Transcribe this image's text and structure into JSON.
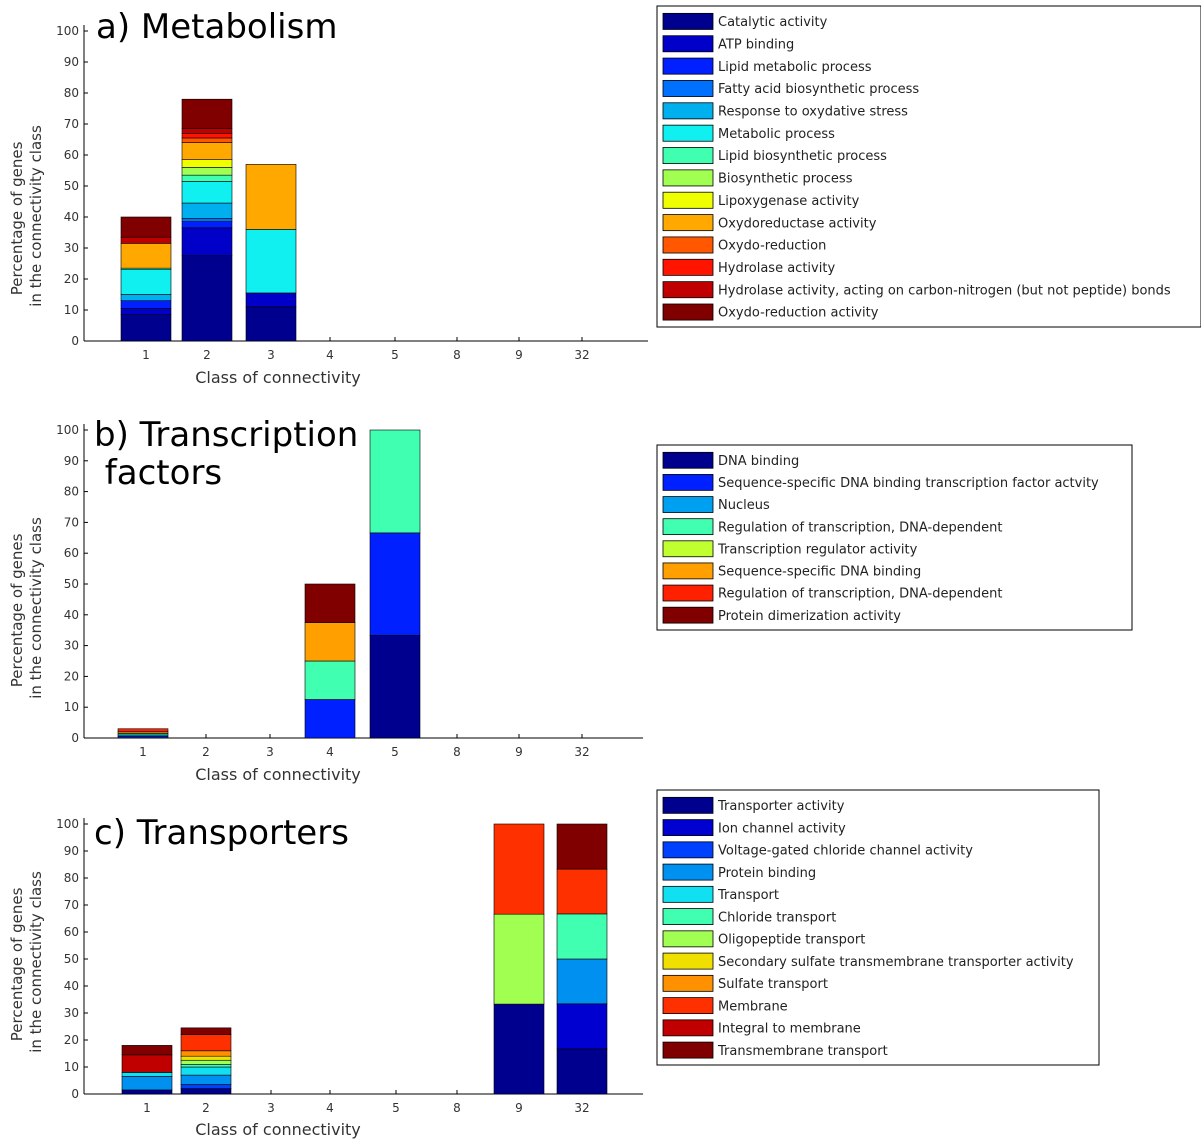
{
  "chart_data": [
    {
      "type": "bar",
      "stacked": true,
      "title": "a) Metabolism",
      "xlabel": "Class of connectivity",
      "ylabel": "Percentage of genes in the connectivity class",
      "ylabel_lines": [
        "Percentage of genes",
        "in the connectivity class"
      ],
      "categories": [
        "1",
        "2",
        "3",
        "4",
        "5",
        "8",
        "9",
        "32"
      ],
      "yticks": [
        0,
        10,
        20,
        30,
        40,
        50,
        60,
        70,
        80,
        90,
        100
      ],
      "ylim": [
        0,
        100
      ],
      "legend_position": "right",
      "series": [
        {
          "name": "Catalytic activity",
          "color": "#00008f",
          "values": [
            8.5,
            27.5,
            11,
            0,
            0,
            0,
            0,
            0
          ]
        },
        {
          "name": "ATP binding",
          "color": "#0000c8",
          "values": [
            2,
            9,
            4.5,
            0,
            0,
            0,
            0,
            0
          ]
        },
        {
          "name": "Lipid metabolic process",
          "color": "#0020ff",
          "values": [
            2.5,
            2,
            0,
            0,
            0,
            0,
            0,
            0
          ]
        },
        {
          "name": "Fatty acid biosynthetic process",
          "color": "#0070ff",
          "values": [
            0,
            1,
            0,
            0,
            0,
            0,
            0,
            0
          ]
        },
        {
          "name": "Response to oxydative stress",
          "color": "#00b0ee",
          "values": [
            2,
            5,
            0,
            0,
            0,
            0,
            0,
            0
          ]
        },
        {
          "name": "Metabolic process",
          "color": "#10f0f0",
          "values": [
            8,
            7,
            20.5,
            0,
            0,
            0,
            0,
            0
          ]
        },
        {
          "name": "Lipid biosynthetic process",
          "color": "#40ffb0",
          "values": [
            0.5,
            2,
            0,
            0,
            0,
            0,
            0,
            0
          ]
        },
        {
          "name": "Biosynthetic process",
          "color": "#a0ff50",
          "values": [
            0,
            2.5,
            0,
            0,
            0,
            0,
            0,
            0
          ]
        },
        {
          "name": "Lipoxygenase activity",
          "color": "#f0ff00",
          "values": [
            0,
            2.5,
            0,
            0,
            0,
            0,
            0,
            0
          ]
        },
        {
          "name": "Oxydoreductase activity",
          "color": "#ffa800",
          "values": [
            8,
            5.5,
            21,
            0,
            0,
            0,
            0,
            0
          ]
        },
        {
          "name": "Oxydo-reduction",
          "color": "#ff5800",
          "values": [
            0,
            1.5,
            0,
            0,
            0,
            0,
            0,
            0
          ]
        },
        {
          "name": "Hydrolase activity",
          "color": "#ff1400",
          "values": [
            0,
            1.5,
            0,
            0,
            0,
            0,
            0,
            0
          ]
        },
        {
          "name": "Hydrolase activity, acting on carbon-nitrogen (but not peptide) bonds",
          "color": "#c00000",
          "values": [
            2,
            1.5,
            0,
            0,
            0,
            0,
            0,
            0
          ]
        },
        {
          "name": "Oxydo-reduction activity",
          "color": "#800000",
          "values": [
            6.5,
            9.5,
            0,
            0,
            0,
            0,
            0,
            0
          ]
        }
      ]
    },
    {
      "type": "bar",
      "stacked": true,
      "title": "b) Transcription factors",
      "title_lines": [
        "b) Transcription",
        " factors"
      ],
      "xlabel": "Class of connectivity",
      "ylabel": "Percentage of genes in the connectivity class",
      "ylabel_lines": [
        "Percentage of genes",
        "in the connectivity class"
      ],
      "categories": [
        "1",
        "2",
        "3",
        "4",
        "5",
        "8",
        "9",
        "32"
      ],
      "yticks": [
        0,
        10,
        20,
        30,
        40,
        50,
        60,
        70,
        80,
        90,
        100
      ],
      "ylim": [
        0,
        100
      ],
      "legend_position": "right",
      "series": [
        {
          "name": "DNA binding",
          "color": "#00008f",
          "values": [
            0,
            0,
            0,
            0,
            33.3,
            0,
            0,
            0
          ]
        },
        {
          "name": "Sequence-specific DNA binding transcription factor actvity",
          "color": "#0020ff",
          "values": [
            0.5,
            0,
            0,
            12.5,
            33.3,
            0,
            0,
            0
          ]
        },
        {
          "name": "Nucleus",
          "color": "#00a0f0",
          "values": [
            0.5,
            0,
            0,
            0,
            0,
            0,
            0,
            0
          ]
        },
        {
          "name": "Regulation of transcription, DNA-dependent",
          "color": "#40ffb0",
          "values": [
            0.5,
            0,
            0,
            12.5,
            33.4,
            0,
            0,
            0
          ]
        },
        {
          "name": "Transcription regulator activity",
          "color": "#c0ff30",
          "values": [
            0,
            0,
            0,
            0,
            0,
            0,
            0,
            0
          ]
        },
        {
          "name": "Sequence-specific DNA binding",
          "color": "#ffa000",
          "values": [
            0.5,
            0,
            0,
            12.5,
            0,
            0,
            0,
            0
          ]
        },
        {
          "name": "Regulation of transcription, DNA-dependent",
          "color": "#ff2000",
          "values": [
            1,
            0,
            0,
            0,
            0,
            0,
            0,
            0
          ]
        },
        {
          "name": "Protein dimerization activity",
          "color": "#800000",
          "values": [
            0,
            0,
            0,
            12.5,
            0,
            0,
            0,
            0
          ]
        }
      ]
    },
    {
      "type": "bar",
      "stacked": true,
      "title": "c) Transporters",
      "xlabel": "Class of connectivity",
      "ylabel": "Percentage of genes in the connectivity class",
      "ylabel_lines": [
        "Percentage of genes",
        "in the connectivity class"
      ],
      "categories": [
        "1",
        "2",
        "3",
        "4",
        "5",
        "8",
        "9",
        "32"
      ],
      "yticks": [
        0,
        10,
        20,
        30,
        40,
        50,
        60,
        70,
        80,
        90,
        100
      ],
      "ylim": [
        0,
        100
      ],
      "legend_position": "right",
      "series": [
        {
          "name": "Transporter activity",
          "color": "#00008f",
          "values": [
            1.5,
            2,
            0,
            0,
            0,
            0,
            33.3,
            16.7
          ]
        },
        {
          "name": "Ion channel activity",
          "color": "#0000d0",
          "values": [
            0,
            0,
            0,
            0,
            0,
            0,
            0,
            16.7
          ]
        },
        {
          "name": "Voltage-gated chloride channel activity",
          "color": "#0040ff",
          "values": [
            0,
            1.5,
            0,
            0,
            0,
            0,
            0,
            0
          ]
        },
        {
          "name": "Protein binding",
          "color": "#0090f0",
          "values": [
            5,
            3.5,
            0,
            0,
            0,
            0,
            0,
            16.6
          ]
        },
        {
          "name": "Transport",
          "color": "#10e0f0",
          "values": [
            1.5,
            3,
            0,
            0,
            0,
            0,
            0,
            0
          ]
        },
        {
          "name": "Chloride transport",
          "color": "#40ffb0",
          "values": [
            0,
            1,
            0,
            0,
            0,
            0,
            0,
            16.7
          ]
        },
        {
          "name": "Oligopeptide transport",
          "color": "#a0ff50",
          "values": [
            0,
            1.5,
            0,
            0,
            0,
            0,
            33.3,
            0
          ]
        },
        {
          "name": "Secondary sulfate transmembrane transporter activity",
          "color": "#f0e000",
          "values": [
            0,
            1.5,
            0,
            0,
            0,
            0,
            0,
            0
          ]
        },
        {
          "name": "Sulfate transport",
          "color": "#ff9000",
          "values": [
            0,
            2,
            0,
            0,
            0,
            0,
            0,
            0
          ]
        },
        {
          "name": "Membrane",
          "color": "#ff3000",
          "values": [
            0,
            6,
            0,
            0,
            0,
            0,
            33.4,
            16.6
          ]
        },
        {
          "name": "Integral to membrane",
          "color": "#c00000",
          "values": [
            6.5,
            0,
            0,
            0,
            0,
            0,
            0,
            0
          ]
        },
        {
          "name": "Transmembrane transport",
          "color": "#800000",
          "values": [
            3.5,
            2.5,
            0,
            0,
            0,
            0,
            0,
            16.7
          ]
        }
      ]
    }
  ]
}
